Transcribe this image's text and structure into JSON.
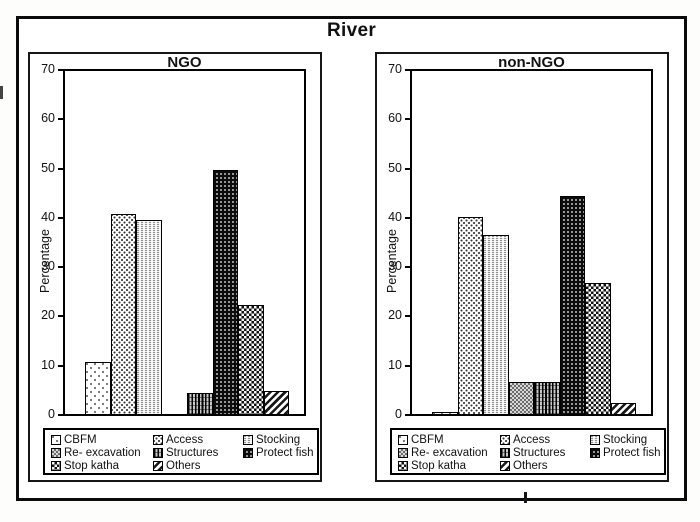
{
  "figure": {
    "title": "River"
  },
  "colors": {
    "ink": "#111111",
    "background": "#ffffff"
  },
  "patterns": [
    "sparse-dots",
    "dots",
    "dotted-columns",
    "gray-checker",
    "dark-vertical-lines",
    "black-dot-grid",
    "checkerboard",
    "diagonal-hatch"
  ],
  "chart_data": [
    {
      "type": "bar",
      "title": "NGO",
      "ylabel": "Percentage",
      "ylim": [
        0,
        70
      ],
      "yticks": [
        0,
        10,
        20,
        30,
        40,
        50,
        60,
        70
      ],
      "grid": false,
      "legend_position": "bottom",
      "categories": [
        "CBFM",
        "Access",
        "Stocking",
        "Re- excavation",
        "Structures",
        "Protect fish",
        "Stop katha",
        "Others"
      ],
      "values": [
        10.5,
        40.5,
        39.3,
        0,
        4.2,
        49.5,
        22.2,
        4.7
      ]
    },
    {
      "type": "bar",
      "title": "non-NGO",
      "ylabel": "Percentage",
      "ylim": [
        0,
        70
      ],
      "yticks": [
        0,
        10,
        20,
        30,
        40,
        50,
        60,
        70
      ],
      "grid": false,
      "legend_position": "bottom",
      "categories": [
        "CBFM",
        "Access",
        "Stocking",
        "Re- excavation",
        "Structures",
        "Protect fish",
        "Stop katha",
        "Others"
      ],
      "values": [
        0.5,
        40,
        36.4,
        6.5,
        6.5,
        44.3,
        26.5,
        2.3
      ]
    }
  ]
}
